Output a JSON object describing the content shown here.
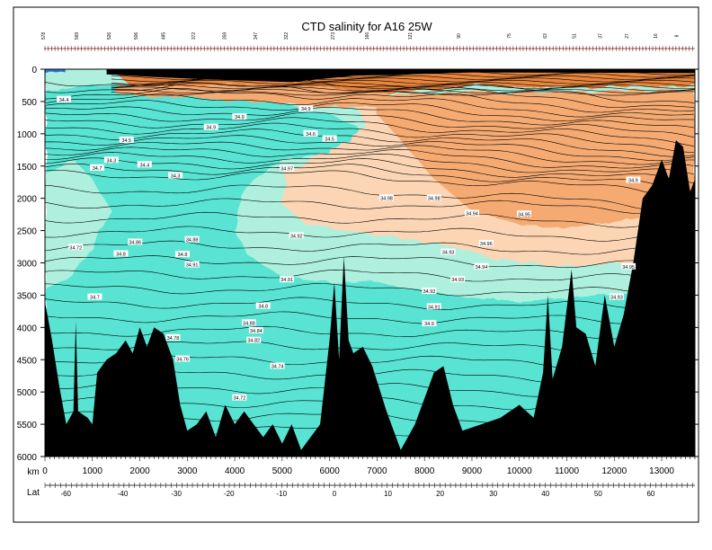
{
  "chart_data": {
    "type": "heatmap",
    "title": "CTD salinity for A16 25W",
    "xlabel": "km",
    "ylabel": "",
    "xlim": [
      0,
      13700
    ],
    "ylim": [
      6000,
      0
    ],
    "x_ticks": [
      0,
      1000,
      2000,
      3000,
      4000,
      5000,
      6000,
      7000,
      8000,
      9000,
      10000,
      11000,
      12000,
      13000
    ],
    "y_ticks": [
      0,
      500,
      1000,
      1500,
      2000,
      2500,
      3000,
      3500,
      4000,
      4500,
      5000,
      5500,
      6000
    ],
    "lat_axis": {
      "label": "Lat",
      "ticks": [
        {
          "lat": -60,
          "km": 440
        },
        {
          "lat": -40,
          "km": 1640
        },
        {
          "lat": -30,
          "km": 2770
        },
        {
          "lat": -20,
          "km": 3880
        },
        {
          "lat": -10,
          "km": 4990
        },
        {
          "lat": 0,
          "km": 6100
        },
        {
          "lat": 10,
          "km": 7230
        },
        {
          "lat": 20,
          "km": 8330
        },
        {
          "lat": 30,
          "km": 9450
        },
        {
          "lat": 40,
          "km": 10550
        },
        {
          "lat": 50,
          "km": 11660
        },
        {
          "lat": 60,
          "km": 12770
        }
      ]
    },
    "stations": [
      {
        "label": "578",
        "km": 0
      },
      {
        "label": "569",
        "km": 700
      },
      {
        "label": "526",
        "km": 1380
      },
      {
        "label": "506",
        "km": 1950
      },
      {
        "label": "485",
        "km": 2530
      },
      {
        "label": "372",
        "km": 3160
      },
      {
        "label": "359",
        "km": 3820
      },
      {
        "label": "347",
        "km": 4470
      },
      {
        "label": "322",
        "km": 5120
      },
      {
        "label": "273",
        "km": 6100
      },
      {
        "label": "166",
        "km": 6820
      },
      {
        "label": "121",
        "km": 7730
      },
      {
        "label": "90",
        "km": 8750
      },
      {
        "label": "75",
        "km": 9820
      },
      {
        "label": "63",
        "km": 10570
      },
      {
        "label": "51",
        "km": 11190
      },
      {
        "label": "37",
        "km": 11740
      },
      {
        "label": "27",
        "km": 12300
      },
      {
        "label": "16",
        "km": 12900
      },
      {
        "label": "8",
        "km": 13350
      }
    ],
    "colors": {
      "fresh_deep": "#ffffff",
      "fresh_mid": "#aef0dd",
      "fresh": "#58e3d3",
      "saline_low": "#fcd6b4",
      "saline_mid": "#f5aa72",
      "saline_high": "#e8853e",
      "bathymetry": "#000000",
      "surface_fresh": "#2a74d0"
    },
    "contour_labels": [
      {
        "text": "34.9",
        "km": 5500,
        "depth": 615
      },
      {
        "text": "34.9",
        "km": 4100,
        "depth": 740
      },
      {
        "text": "34.9",
        "km": 3500,
        "depth": 900
      },
      {
        "text": "34.6",
        "km": 5600,
        "depth": 1000
      },
      {
        "text": "34.5",
        "km": 6000,
        "depth": 1080
      },
      {
        "text": "34.5",
        "km": 1720,
        "depth": 1100
      },
      {
        "text": "34.4",
        "km": 400,
        "depth": 470
      },
      {
        "text": "34.3",
        "km": 1400,
        "depth": 1410
      },
      {
        "text": "34.4",
        "km": 2100,
        "depth": 1480
      },
      {
        "text": "34.7",
        "km": 1100,
        "depth": 1530
      },
      {
        "text": "34.3",
        "km": 2750,
        "depth": 1650
      },
      {
        "text": "34.97",
        "km": 5100,
        "depth": 1540
      },
      {
        "text": "34.98",
        "km": 7200,
        "depth": 1995
      },
      {
        "text": "34.98",
        "km": 8200,
        "depth": 1995
      },
      {
        "text": "34.94",
        "km": 9000,
        "depth": 2235
      },
      {
        "text": "34.95",
        "km": 10100,
        "depth": 2245
      },
      {
        "text": "34.92",
        "km": 5300,
        "depth": 2580
      },
      {
        "text": "34.88",
        "km": 3100,
        "depth": 2640
      },
      {
        "text": "34.86",
        "km": 1900,
        "depth": 2680
      },
      {
        "text": "34.72",
        "km": 650,
        "depth": 2760
      },
      {
        "text": "34.8",
        "km": 2900,
        "depth": 2870
      },
      {
        "text": "34.8",
        "km": 1600,
        "depth": 2860
      },
      {
        "text": "34.96",
        "km": 9300,
        "depth": 2700
      },
      {
        "text": "34.93",
        "km": 8500,
        "depth": 2835
      },
      {
        "text": "34.91",
        "km": 3100,
        "depth": 3030
      },
      {
        "text": "34.94",
        "km": 9200,
        "depth": 3060
      },
      {
        "text": "34.93",
        "km": 8700,
        "depth": 3260
      },
      {
        "text": "34.92",
        "km": 8100,
        "depth": 3440
      },
      {
        "text": "34.91",
        "km": 5100,
        "depth": 3260
      },
      {
        "text": "34.91",
        "km": 8200,
        "depth": 3680
      },
      {
        "text": "34.9",
        "km": 8100,
        "depth": 3940
      },
      {
        "text": "34.8",
        "km": 4600,
        "depth": 3670
      },
      {
        "text": "34.7",
        "km": 1050,
        "depth": 3530
      },
      {
        "text": "34.88",
        "km": 4300,
        "depth": 3930
      },
      {
        "text": "34.84",
        "km": 4450,
        "depth": 4050
      },
      {
        "text": "34.82",
        "km": 4400,
        "depth": 4200
      },
      {
        "text": "34.78",
        "km": 2700,
        "depth": 4160
      },
      {
        "text": "34.76",
        "km": 2900,
        "depth": 4490
      },
      {
        "text": "34.74",
        "km": 4900,
        "depth": 4600
      },
      {
        "text": "34.72",
        "km": 4100,
        "depth": 5090
      },
      {
        "text": "34.9",
        "km": 12400,
        "depth": 1720
      },
      {
        "text": "34.95",
        "km": 12300,
        "depth": 3060
      },
      {
        "text": "34.93",
        "km": 12050,
        "depth": 3530
      }
    ]
  }
}
